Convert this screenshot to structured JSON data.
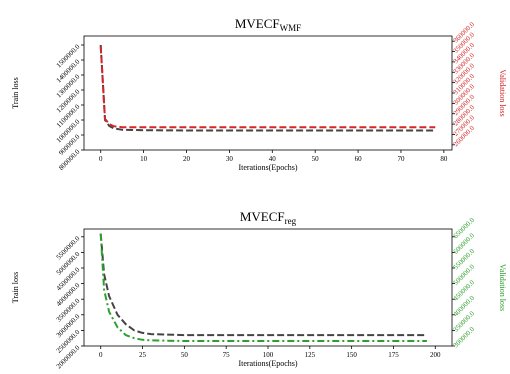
{
  "chart_data": [
    {
      "type": "line",
      "title": "MVECF",
      "title_sub": "WMF",
      "x_label": "Iterations(Epochs)",
      "y_label": "Train loss",
      "y2_label": "Validation loss",
      "x": [
        0,
        1,
        2,
        3,
        5,
        10,
        20,
        30,
        40,
        50,
        60,
        70,
        78
      ],
      "series": [
        {
          "name": "Train loss",
          "color": "#444444",
          "values": [
            1500000,
            1000000,
            960000,
            945000,
            935000,
            932000,
            930000,
            930000,
            930000,
            930000,
            930000,
            930000,
            930000
          ]
        },
        {
          "name": "Validation loss",
          "color": "#d62728",
          "axis": "y2",
          "values": [
            355000,
            285000,
            280000,
            278000,
            277000,
            277000,
            277000,
            277000,
            277000,
            277000,
            277000,
            277000,
            277000
          ]
        }
      ],
      "xlim": [
        -3.9,
        81.9
      ],
      "xticks": [
        0,
        10,
        20,
        30,
        40,
        50,
        60,
        70,
        80
      ],
      "ylim": [
        800000,
        1560000
      ],
      "yticks": [
        {
          "value": 800000,
          "label": "800000.0"
        },
        {
          "value": 900000,
          "label": "900000.0"
        },
        {
          "value": 1000000,
          "label": "1000000.0"
        },
        {
          "value": 1100000,
          "label": "1100000.0"
        },
        {
          "value": 1200000,
          "label": "1200000.0"
        },
        {
          "value": 1300000,
          "label": "1300000.0"
        },
        {
          "value": 1400000,
          "label": "1400000.0"
        },
        {
          "value": 1500000,
          "label": "1500000.0"
        }
      ],
      "y2lim": [
        255000,
        365000
      ],
      "y2ticks": [
        {
          "value": 260000,
          "label": "260000.0"
        },
        {
          "value": 270000,
          "label": "270000.0"
        },
        {
          "value": 280000,
          "label": "280000.0"
        },
        {
          "value": 290000,
          "label": "290000.0"
        },
        {
          "value": 300000,
          "label": "300000.0"
        },
        {
          "value": 310000,
          "label": "310000.0"
        },
        {
          "value": 320000,
          "label": "320000.0"
        },
        {
          "value": 330000,
          "label": "330000.0"
        },
        {
          "value": 340000,
          "label": "340000.0"
        },
        {
          "value": 350000,
          "label": "350000.0"
        },
        {
          "value": 360000,
          "label": "360000.0"
        }
      ]
    },
    {
      "type": "line",
      "title": "MVECF",
      "title_sub": "reg",
      "x_label": "Iterations(Epochs)",
      "y_label": "Train loss",
      "y2_label": "Validation loss",
      "x": [
        0,
        2,
        5,
        10,
        15,
        20,
        25,
        30,
        50,
        100,
        150,
        195
      ],
      "series": [
        {
          "name": "Train loss",
          "color": "#444444",
          "values": [
            5600000,
            4300000,
            3600000,
            3000000,
            2700000,
            2500000,
            2420000,
            2380000,
            2350000,
            2350000,
            2350000,
            2350000
          ]
        },
        {
          "name": "Validation loss",
          "color": "#2ca02c",
          "axis": "y2",
          "values": [
            660000,
            480000,
            410000,
            360000,
            335000,
            325000,
            320000,
            318000,
            316000,
            316000,
            316000,
            316000
          ]
        }
      ],
      "xlim": [
        -10,
        210
      ],
      "xticks": [
        0,
        25,
        50,
        75,
        100,
        125,
        150,
        175,
        200
      ],
      "ylim": [
        2000000,
        5750000
      ],
      "yticks": [
        {
          "value": 2000000,
          "label": "2000000.0"
        },
        {
          "value": 2500000,
          "label": "2500000.0"
        },
        {
          "value": 3000000,
          "label": "3000000.0"
        },
        {
          "value": 3500000,
          "label": "3500000.0"
        },
        {
          "value": 4000000,
          "label": "4000000.0"
        },
        {
          "value": 4500000,
          "label": "4500000.0"
        },
        {
          "value": 5000000,
          "label": "5000000.0"
        },
        {
          "value": 5500000,
          "label": "5500000.0"
        }
      ],
      "y2lim": [
        300000,
        675000
      ],
      "y2ticks": [
        {
          "value": 300000,
          "label": "300000.0"
        },
        {
          "value": 350000,
          "label": "350000.0"
        },
        {
          "value": 400000,
          "label": "400000.0"
        },
        {
          "value": 450000,
          "label": "450000.0"
        },
        {
          "value": 500000,
          "label": "500000.0"
        },
        {
          "value": 550000,
          "label": "550000.0"
        },
        {
          "value": 600000,
          "label": "600000.0"
        },
        {
          "value": 650000,
          "label": "650000.0"
        }
      ]
    }
  ]
}
